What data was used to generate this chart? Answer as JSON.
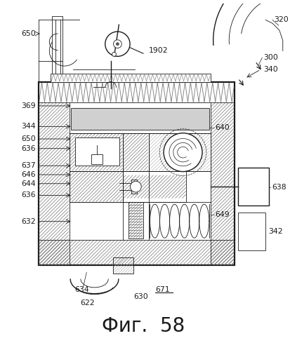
{
  "title": "Фиг.  58",
  "title_size": 20,
  "background": "#ffffff",
  "line_color": "#1a1a1a",
  "fig_width": 4.14,
  "fig_height": 4.99,
  "dpi": 100
}
